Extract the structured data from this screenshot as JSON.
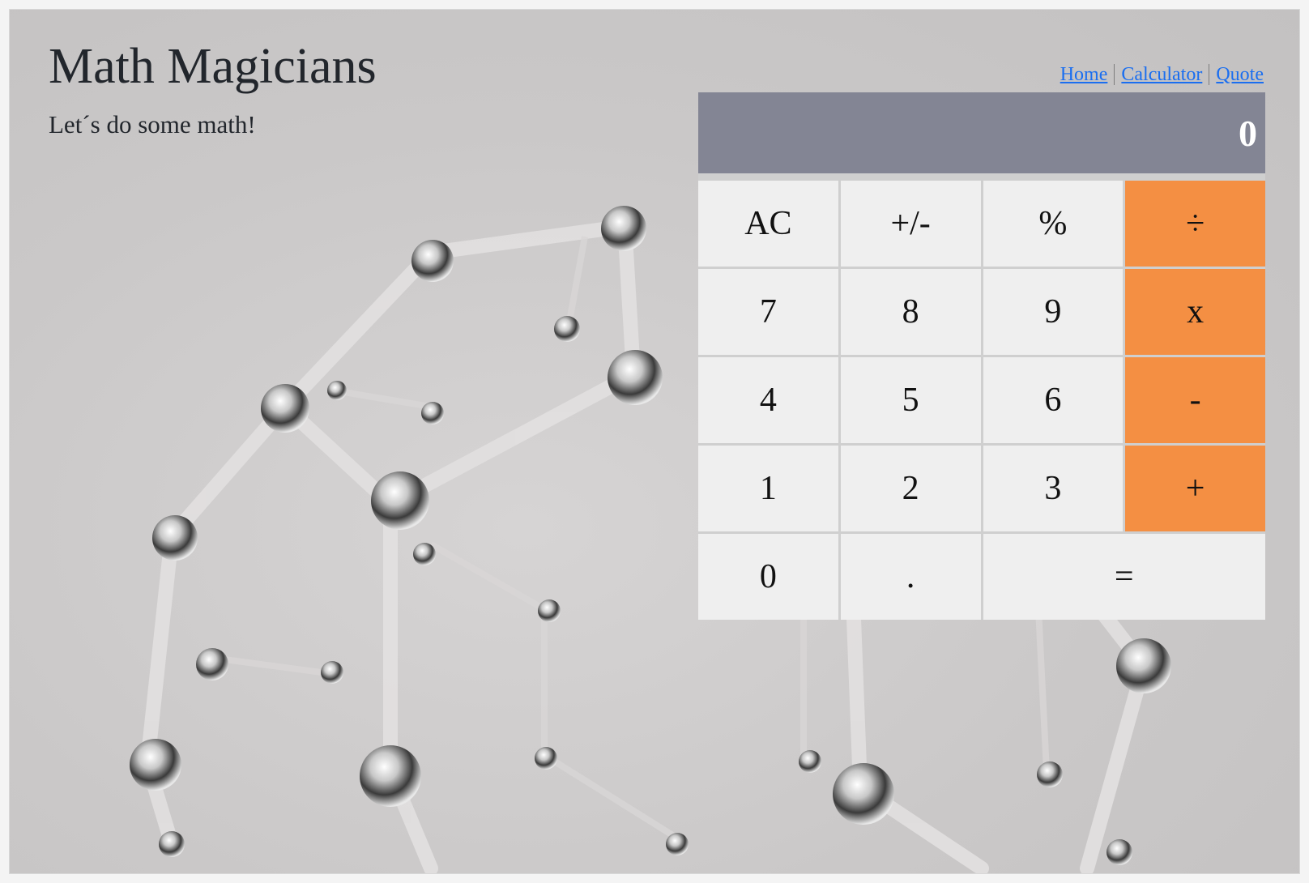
{
  "header": {
    "title": "Math Magicians",
    "subtitle": "Let´s do some math!"
  },
  "nav": {
    "links": [
      "Home",
      "Calculator",
      "Quote"
    ]
  },
  "calculator": {
    "display": "0",
    "keys": {
      "ac": "AC",
      "plus_minus": "+/-",
      "percent": "%",
      "divide": "÷",
      "seven": "7",
      "eight": "8",
      "nine": "9",
      "multiply": "x",
      "four": "4",
      "five": "5",
      "six": "6",
      "minus": "-",
      "one": "1",
      "two": "2",
      "three": "3",
      "plus": "+",
      "zero": "0",
      "decimal": ".",
      "equals": "="
    }
  },
  "colors": {
    "display_bg": "#838594",
    "operator_bg": "#f48f43",
    "key_bg": "#efefef",
    "link": "#1a6ef0"
  }
}
